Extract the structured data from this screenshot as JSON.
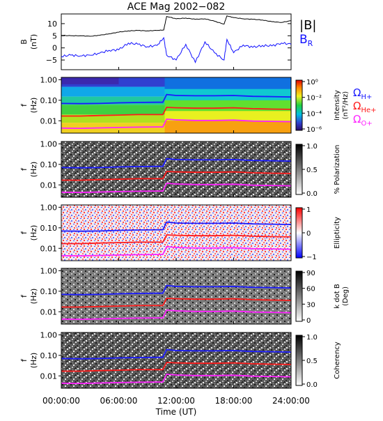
{
  "title": "ACE Mag 2002−082",
  "x_axis": {
    "label": "Time (UT)",
    "ticks": [
      {
        "hours": 0,
        "label": "00:00:00"
      },
      {
        "hours": 6,
        "label": "06:00:00"
      },
      {
        "hours": 12,
        "label": "12:00:00"
      },
      {
        "hours": 18,
        "label": "18:00:00"
      },
      {
        "hours": 24,
        "label": "24:00:00"
      }
    ],
    "range_hours": [
      0,
      24
    ]
  },
  "legend": {
    "b_total": "|B|",
    "b_r_main": "B",
    "b_r_sub": "R",
    "h_main": "Ω",
    "h_sub": "H+",
    "he_main": "Ω",
    "he_sub": "He+",
    "o_main": "Ω",
    "o_sub": "O+"
  },
  "colors": {
    "b_total": "#000000",
    "b_r": "#1010ff",
    "omega_h": "#1a1aff",
    "omega_he": "#ff1a1a",
    "omega_o": "#ff22ff"
  },
  "panels": {
    "b": {
      "ylabel": "B",
      "yunit": "(nT)",
      "yticks": [
        "10",
        "5",
        "0",
        "−5"
      ],
      "ylim": [
        -9,
        14
      ]
    },
    "spec": {
      "ylabel": "f",
      "yunit": "(Hz)",
      "yticks": [
        "1.00",
        "0.10",
        "0.01"
      ],
      "ylim_hz": [
        0.0025,
        1.3
      ],
      "scale": "log"
    },
    "intensity": {
      "cbar_label": "Intensity",
      "cbar_unit": "(nT²/Hz)",
      "cbar_ticks": [
        "10⁰",
        "10⁻²",
        "10⁻⁴",
        "10⁻⁶"
      ],
      "colormap": "rainbow"
    },
    "polarization": {
      "cbar_label": "% Polarization",
      "cbar_ticks": [
        "1.0",
        "0.5",
        "0.0"
      ],
      "colormap": "grayscale"
    },
    "ellipticity": {
      "cbar_label": "Ellipticity",
      "cbar_ticks": [
        "1",
        "0",
        "−1"
      ],
      "colormap": "blue-white-red"
    },
    "kdotb": {
      "cbar_label": "k dot B",
      "cbar_unit": "(Deg)",
      "cbar_ticks": [
        "90",
        "60",
        "30",
        "0"
      ],
      "colormap": "grayscale"
    },
    "coherency": {
      "cbar_label": "Coherency",
      "cbar_ticks": [
        "1.0",
        "0.5",
        "0.0"
      ],
      "colormap": "grayscale"
    }
  },
  "chart_data": [
    {
      "type": "line",
      "title": "ACE Mag 2002−082",
      "xlabel": "Time (UT)",
      "ylabel": "B (nT)",
      "ylim": [
        -9,
        14
      ],
      "x": [
        0,
        1,
        2,
        3,
        4,
        5,
        6,
        7,
        8,
        9,
        10,
        10.7,
        11,
        12,
        13,
        14,
        15,
        16,
        17,
        17.3,
        18,
        19,
        20,
        21,
        22,
        23,
        24
      ],
      "series": [
        {
          "name": "|B|",
          "values": [
            5.2,
            5.0,
            5.0,
            4.8,
            5.2,
            5.8,
            6.5,
            7.0,
            7.2,
            7.0,
            7.2,
            7.4,
            13.0,
            12.0,
            12.3,
            11.8,
            12.0,
            11.0,
            9.8,
            13.2,
            12.5,
            12.0,
            11.8,
            11.5,
            10.8,
            10.5,
            11.2
          ]
        },
        {
          "name": "B_R",
          "values": [
            -3.5,
            -3.0,
            -3.3,
            -3.0,
            -2.2,
            -1.0,
            -0.8,
            2.0,
            1.5,
            0.5,
            1.0,
            4.2,
            -3.0,
            -5.0,
            1.5,
            -6.0,
            2.5,
            -2.0,
            -5.0,
            3.5,
            -2.0,
            1.2,
            0.2,
            1.0,
            0.8,
            2.0,
            1.5
          ]
        }
      ]
    },
    {
      "type": "heatmap",
      "title": "",
      "xlabel": "Time (UT)",
      "ylabel": "f (Hz)",
      "yscale": "log",
      "ylim": [
        0.0025,
        1.3
      ],
      "x": [
        0,
        2,
        4,
        6,
        8,
        10,
        10.6,
        11,
        12,
        14,
        16,
        18,
        20,
        22,
        24
      ],
      "series": [
        {
          "name": "ΩH+",
          "values": [
            0.07,
            0.068,
            0.07,
            0.075,
            0.078,
            0.08,
            0.08,
            0.19,
            0.17,
            0.165,
            0.165,
            0.17,
            0.155,
            0.15,
            0.145
          ]
        },
        {
          "name": "ΩHe+",
          "values": [
            0.017,
            0.017,
            0.018,
            0.019,
            0.02,
            0.02,
            0.02,
            0.045,
            0.043,
            0.041,
            0.041,
            0.043,
            0.039,
            0.037,
            0.036
          ]
        },
        {
          "name": "ΩO+",
          "values": [
            0.0044,
            0.0043,
            0.0045,
            0.0047,
            0.0049,
            0.005,
            0.005,
            0.012,
            0.011,
            0.0104,
            0.0104,
            0.0108,
            0.0097,
            0.0094,
            0.009
          ]
        }
      ],
      "panels": [
        "Intensity",
        "% Polarization",
        "Ellipticity",
        "k dot B",
        "Coherency"
      ]
    }
  ]
}
